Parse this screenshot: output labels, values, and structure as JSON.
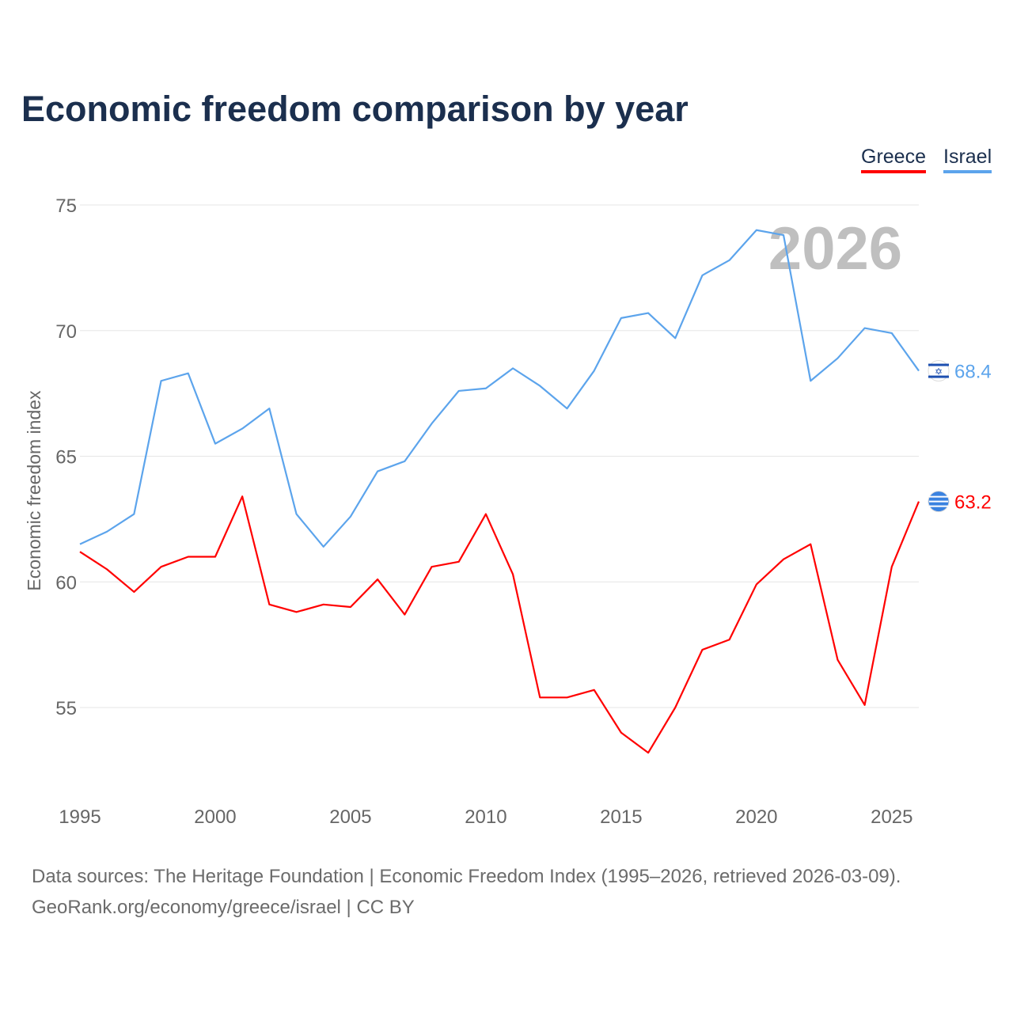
{
  "chart_data": {
    "type": "line",
    "title": "Economic freedom comparison by year",
    "ylabel": "Economic freedom index",
    "xlabel": "",
    "ylim": [
      51.5,
      76
    ],
    "xlim": [
      1995,
      2026
    ],
    "yticks": [
      55,
      60,
      65,
      70,
      75
    ],
    "xticks": [
      1995,
      2000,
      2005,
      2010,
      2015,
      2020,
      2025
    ],
    "grid": true,
    "legend_position": "top-right",
    "watermark_year": "2026",
    "x": [
      1995,
      1996,
      1997,
      1998,
      1999,
      2000,
      2001,
      2002,
      2003,
      2004,
      2005,
      2006,
      2007,
      2008,
      2009,
      2010,
      2011,
      2012,
      2013,
      2014,
      2015,
      2016,
      2017,
      2018,
      2019,
      2020,
      2021,
      2022,
      2023,
      2024,
      2025,
      2026
    ],
    "series": [
      {
        "name": "Greece",
        "color": "#ff0000",
        "end_label": "63.2",
        "flag": "greece-flag",
        "values": [
          61.2,
          60.5,
          59.6,
          60.6,
          61.0,
          61.0,
          63.4,
          59.1,
          58.8,
          59.1,
          59.0,
          60.1,
          58.7,
          60.6,
          60.8,
          62.7,
          60.3,
          55.4,
          55.4,
          55.7,
          54.0,
          53.2,
          55.0,
          57.3,
          57.7,
          59.9,
          60.9,
          61.5,
          56.9,
          55.1,
          60.6,
          63.2
        ]
      },
      {
        "name": "Israel",
        "color": "#5ca4ec",
        "end_label": "68.4",
        "flag": "israel-flag",
        "values": [
          61.5,
          62.0,
          62.7,
          68.0,
          68.3,
          65.5,
          66.1,
          66.9,
          62.7,
          61.4,
          62.6,
          64.4,
          64.8,
          66.3,
          67.6,
          67.7,
          68.5,
          67.8,
          66.9,
          68.4,
          70.5,
          70.7,
          69.7,
          72.2,
          72.8,
          74.0,
          73.8,
          68.0,
          68.9,
          70.1,
          69.9,
          68.4
        ]
      }
    ]
  },
  "source": {
    "line1": "Data sources: The Heritage Foundation | Economic Freedom Index (1995–2026, retrieved 2026-03-09).",
    "line2": "GeoRank.org/economy/greece/israel | CC BY"
  }
}
